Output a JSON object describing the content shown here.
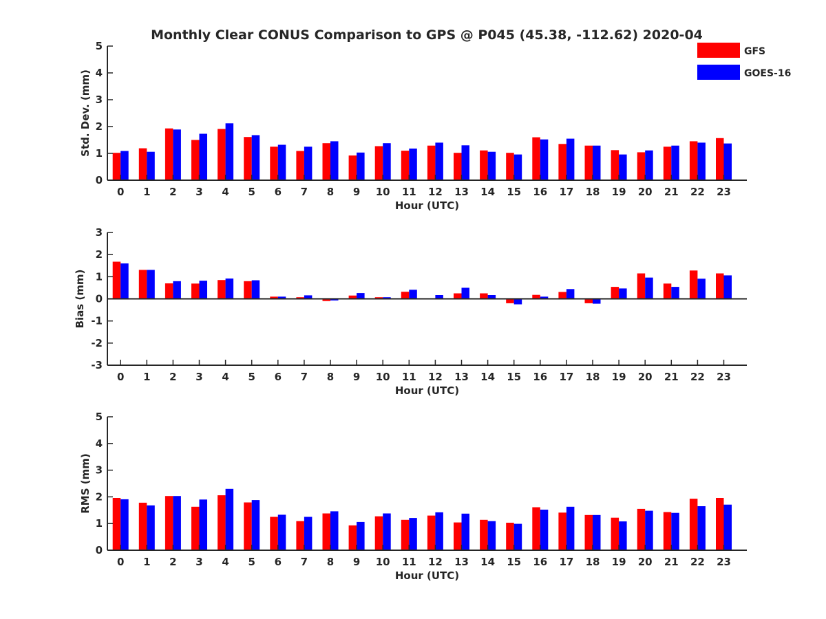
{
  "title": "Monthly Clear CONUS Comparison to GPS @ P045 (45.38, -112.62) 2020-04",
  "colors": {
    "gfs": "#ff0000",
    "goes": "#0000ff",
    "axis": "#262626"
  },
  "legend": {
    "position": "top-right",
    "items": [
      {
        "label": "GFS",
        "color": "#ff0000"
      },
      {
        "label": "GOES-16",
        "color": "#0000ff"
      }
    ]
  },
  "chart_data": [
    {
      "type": "bar",
      "ylabel": "Std. Dev. (mm)",
      "xlabel": "Hour (UTC)",
      "ylim": [
        0,
        5
      ],
      "yticks": [
        0,
        1,
        2,
        3,
        4,
        5
      ],
      "categories": [
        0,
        1,
        2,
        3,
        4,
        5,
        6,
        7,
        8,
        9,
        10,
        11,
        12,
        13,
        14,
        15,
        16,
        17,
        18,
        19,
        20,
        21,
        22,
        23
      ],
      "series": [
        {
          "name": "GFS",
          "values": [
            1.02,
            1.19,
            1.93,
            1.5,
            1.91,
            1.61,
            1.25,
            1.09,
            1.38,
            0.92,
            1.27,
            1.1,
            1.29,
            1.02,
            1.11,
            1.02,
            1.6,
            1.35,
            1.29,
            1.12,
            1.04,
            1.25,
            1.45,
            1.57
          ]
        },
        {
          "name": "GOES-16",
          "values": [
            1.09,
            1.06,
            1.89,
            1.73,
            2.12,
            1.68,
            1.32,
            1.25,
            1.45,
            1.03,
            1.38,
            1.18,
            1.4,
            1.3,
            1.06,
            0.96,
            1.52,
            1.55,
            1.29,
            0.96,
            1.11,
            1.29,
            1.4,
            1.37
          ]
        }
      ]
    },
    {
      "type": "bar",
      "ylabel": "Bias (mm)",
      "xlabel": "Hour (UTC)",
      "ylim": [
        -3,
        3
      ],
      "yticks": [
        -3,
        -2,
        -1,
        0,
        1,
        2,
        3
      ],
      "categories": [
        0,
        1,
        2,
        3,
        4,
        5,
        6,
        7,
        8,
        9,
        10,
        11,
        12,
        13,
        14,
        15,
        16,
        17,
        18,
        19,
        20,
        21,
        22,
        23
      ],
      "series": [
        {
          "name": "GFS",
          "values": [
            1.68,
            1.31,
            0.7,
            0.69,
            0.85,
            0.8,
            0.1,
            0.07,
            -0.1,
            0.15,
            0.07,
            0.32,
            0.03,
            0.25,
            0.25,
            -0.2,
            0.18,
            0.31,
            -0.2,
            0.54,
            1.15,
            0.69,
            1.28,
            1.15
          ]
        },
        {
          "name": "GOES-16",
          "values": [
            1.6,
            1.31,
            0.8,
            0.82,
            0.92,
            0.84,
            0.1,
            0.16,
            -0.07,
            0.26,
            0.07,
            0.41,
            0.17,
            0.5,
            0.17,
            -0.25,
            0.1,
            0.44,
            -0.22,
            0.47,
            0.96,
            0.54,
            0.91,
            1.06
          ]
        }
      ]
    },
    {
      "type": "bar",
      "ylabel": "RMS (mm)",
      "xlabel": "Hour (UTC)",
      "ylim": [
        0,
        5
      ],
      "yticks": [
        0,
        1,
        2,
        3,
        4,
        5
      ],
      "categories": [
        0,
        1,
        2,
        3,
        4,
        5,
        6,
        7,
        8,
        9,
        10,
        11,
        12,
        13,
        14,
        15,
        16,
        17,
        18,
        19,
        20,
        21,
        22,
        23
      ],
      "series": [
        {
          "name": "GFS",
          "values": [
            1.96,
            1.78,
            2.03,
            1.63,
            2.06,
            1.79,
            1.25,
            1.09,
            1.38,
            0.93,
            1.27,
            1.14,
            1.3,
            1.04,
            1.14,
            1.03,
            1.61,
            1.41,
            1.32,
            1.22,
            1.55,
            1.43,
            1.93,
            1.96
          ]
        },
        {
          "name": "GOES-16",
          "values": [
            1.91,
            1.68,
            2.03,
            1.9,
            2.3,
            1.88,
            1.33,
            1.25,
            1.46,
            1.06,
            1.38,
            1.21,
            1.42,
            1.37,
            1.09,
            0.99,
            1.52,
            1.63,
            1.32,
            1.08,
            1.48,
            1.4,
            1.65,
            1.71
          ]
        }
      ]
    }
  ]
}
